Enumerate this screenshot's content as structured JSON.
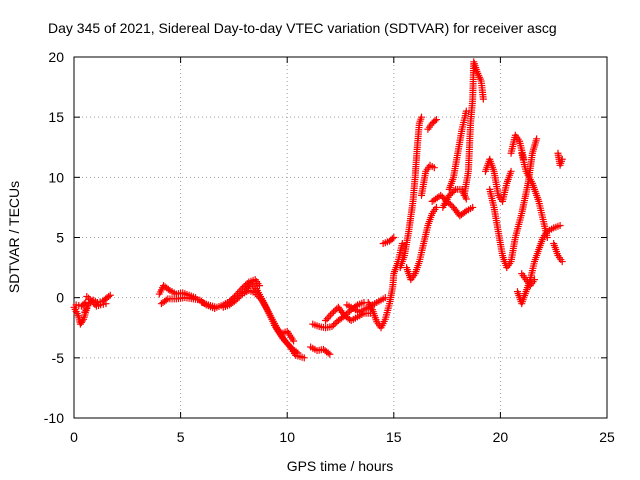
{
  "chart_data": {
    "type": "scatter",
    "title": "Day 345 of 2021, Sidereal Day-to-day VTEC variation (SDTVAR) for receiver ascg",
    "xlabel": "GPS time / hours",
    "ylabel": "SDTVAR / TECUs",
    "xlim": [
      0,
      25
    ],
    "ylim": [
      -10,
      20
    ],
    "xticks": [
      0,
      5,
      10,
      15,
      20,
      25
    ],
    "yticks": [
      -10,
      -5,
      0,
      5,
      10,
      15,
      20
    ],
    "grid": true,
    "marker": "+",
    "color": "#ff0000",
    "series": [
      {
        "name": "SDTVAR",
        "segments": [
          [
            [
              0.0,
              -0.8
            ],
            [
              0.2,
              -1.5
            ],
            [
              0.3,
              -2.2
            ],
            [
              0.45,
              -1.8
            ],
            [
              0.6,
              -0.9
            ]
          ],
          [
            [
              0.1,
              -0.6
            ],
            [
              0.35,
              -0.7
            ],
            [
              0.55,
              -0.4
            ]
          ],
          [
            [
              0.5,
              -1.2
            ],
            [
              0.7,
              -0.5
            ],
            [
              0.9,
              -0.2
            ],
            [
              1.1,
              -0.4
            ],
            [
              1.35,
              -0.3
            ],
            [
              1.55,
              0.0
            ],
            [
              1.7,
              0.2
            ]
          ],
          [
            [
              0.6,
              0.1
            ],
            [
              0.85,
              -0.3
            ],
            [
              1.05,
              -0.7
            ],
            [
              1.25,
              -0.6
            ],
            [
              1.5,
              -0.5
            ]
          ],
          [
            [
              4.0,
              0.3
            ],
            [
              4.2,
              1.0
            ],
            [
              4.5,
              0.6
            ],
            [
              4.8,
              0.3
            ],
            [
              5.1,
              0.4
            ],
            [
              5.4,
              0.2
            ],
            [
              5.7,
              0.0
            ]
          ],
          [
            [
              4.1,
              -0.5
            ],
            [
              4.4,
              -0.1
            ],
            [
              4.8,
              -0.1
            ],
            [
              5.2,
              0.0
            ],
            [
              5.6,
              -0.1
            ],
            [
              5.9,
              -0.2
            ],
            [
              6.2,
              -0.6
            ],
            [
              6.6,
              -0.9
            ]
          ],
          [
            [
              6.0,
              -0.4
            ],
            [
              6.3,
              -0.6
            ],
            [
              6.7,
              -0.8
            ],
            [
              7.0,
              -0.6
            ],
            [
              7.3,
              -0.3
            ],
            [
              7.6,
              0.2
            ],
            [
              7.9,
              0.8
            ],
            [
              8.2,
              1.3
            ],
            [
              8.5,
              1.5
            ],
            [
              8.7,
              1.0
            ]
          ],
          [
            [
              7.0,
              -0.8
            ],
            [
              7.3,
              -0.6
            ],
            [
              7.6,
              -0.2
            ],
            [
              7.9,
              0.3
            ],
            [
              8.2,
              0.6
            ],
            [
              8.5,
              0.4
            ],
            [
              8.8,
              -0.2
            ],
            [
              9.0,
              -0.8
            ],
            [
              9.3,
              -1.8
            ],
            [
              9.6,
              -2.8
            ],
            [
              9.9,
              -3.6
            ],
            [
              10.2,
              -4.2
            ],
            [
              10.5,
              -4.6
            ]
          ],
          [
            [
              8.0,
              0.5
            ],
            [
              8.3,
              1.2
            ],
            [
              8.6,
              0.6
            ],
            [
              8.9,
              -0.4
            ],
            [
              9.2,
              -1.5
            ],
            [
              9.5,
              -2.6
            ],
            [
              9.8,
              -3.4
            ],
            [
              10.1,
              -4.0
            ],
            [
              10.4,
              -4.8
            ],
            [
              10.8,
              -5.0
            ]
          ],
          [
            [
              9.4,
              -2.3
            ],
            [
              9.7,
              -3.0
            ],
            [
              10.0,
              -2.8
            ],
            [
              10.3,
              -3.6
            ]
          ],
          [
            [
              11.1,
              -4.1
            ],
            [
              11.4,
              -4.4
            ],
            [
              11.7,
              -4.3
            ],
            [
              12.0,
              -4.7
            ]
          ],
          [
            [
              11.2,
              -2.2
            ],
            [
              11.5,
              -2.4
            ],
            [
              11.8,
              -2.5
            ],
            [
              12.1,
              -2.4
            ],
            [
              12.4,
              -1.9
            ],
            [
              12.7,
              -1.5
            ],
            [
              13.0,
              -1.0
            ],
            [
              13.3,
              -0.6
            ],
            [
              13.6,
              -0.4
            ]
          ],
          [
            [
              11.8,
              -1.9
            ],
            [
              12.1,
              -1.3
            ],
            [
              12.4,
              -0.8
            ],
            [
              12.7,
              -1.5
            ],
            [
              13.0,
              -1.9
            ],
            [
              13.3,
              -1.6
            ],
            [
              13.6,
              -1.3
            ],
            [
              13.9,
              -1.3
            ]
          ],
          [
            [
              12.8,
              -0.6
            ],
            [
              13.1,
              -0.9
            ],
            [
              13.4,
              -1.2
            ],
            [
              13.7,
              -0.9
            ],
            [
              14.0,
              -0.6
            ],
            [
              14.3,
              -0.3
            ],
            [
              14.6,
              0.0
            ]
          ],
          [
            [
              13.8,
              -0.4
            ],
            [
              14.0,
              -1.0
            ],
            [
              14.2,
              -2.0
            ],
            [
              14.4,
              -2.5
            ],
            [
              14.6,
              -1.8
            ],
            [
              14.8,
              -0.5
            ],
            [
              14.95,
              0.9
            ],
            [
              15.0,
              2.0
            ],
            [
              15.2,
              3.0
            ],
            [
              15.4,
              4.5
            ]
          ],
          [
            [
              14.5,
              4.5
            ],
            [
              14.8,
              4.7
            ],
            [
              15.0,
              5.0
            ]
          ],
          [
            [
              15.3,
              2.5
            ],
            [
              15.5,
              3.5
            ],
            [
              15.7,
              5.5
            ],
            [
              15.9,
              8.0
            ],
            [
              16.0,
              10.0
            ],
            [
              16.1,
              12.5
            ],
            [
              16.2,
              14.5
            ],
            [
              16.3,
              15.0
            ]
          ],
          [
            [
              15.6,
              2.5
            ],
            [
              15.8,
              1.5
            ],
            [
              16.0,
              2.0
            ],
            [
              16.2,
              3.0
            ],
            [
              16.4,
              4.5
            ],
            [
              16.6,
              6.0
            ],
            [
              16.8,
              7.0
            ],
            [
              17.0,
              7.5
            ]
          ],
          [
            [
              16.3,
              8.5
            ],
            [
              16.5,
              10.5
            ],
            [
              16.7,
              11.0
            ],
            [
              16.9,
              10.8
            ]
          ],
          [
            [
              16.6,
              14.0
            ],
            [
              16.8,
              14.5
            ],
            [
              17.0,
              14.8
            ]
          ],
          [
            [
              16.8,
              8.0
            ],
            [
              17.2,
              8.5
            ],
            [
              17.5,
              8.0
            ],
            [
              17.8,
              7.5
            ],
            [
              18.1,
              6.8
            ],
            [
              18.4,
              7.2
            ],
            [
              18.7,
              7.5
            ]
          ],
          [
            [
              17.3,
              7.5
            ],
            [
              17.6,
              8.5
            ],
            [
              17.9,
              9.0
            ],
            [
              18.2,
              9.0
            ],
            [
              18.4,
              8.2
            ]
          ],
          [
            [
              17.6,
              9.0
            ],
            [
              17.8,
              10.0
            ],
            [
              18.0,
              12.0
            ],
            [
              18.2,
              14.0
            ],
            [
              18.4,
              15.5
            ]
          ],
          [
            [
              18.3,
              8.5
            ],
            [
              18.5,
              10.5
            ],
            [
              18.6,
              14.5
            ],
            [
              18.7,
              16.5
            ],
            [
              18.75,
              19.6
            ],
            [
              18.9,
              18.8
            ],
            [
              19.1,
              18.0
            ],
            [
              19.2,
              16.5
            ]
          ],
          [
            [
              19.3,
              10.5
            ],
            [
              19.5,
              11.5
            ],
            [
              19.7,
              10.5
            ],
            [
              19.9,
              8.5
            ],
            [
              20.1,
              8.0
            ],
            [
              20.3,
              9.5
            ],
            [
              20.5,
              10.5
            ]
          ],
          [
            [
              19.5,
              9.0
            ],
            [
              19.7,
              7.5
            ],
            [
              19.9,
              5.5
            ],
            [
              20.1,
              3.5
            ],
            [
              20.3,
              2.5
            ],
            [
              20.5,
              3.0
            ],
            [
              20.7,
              5.0
            ],
            [
              21.0,
              7.0
            ],
            [
              21.3,
              9.5
            ],
            [
              21.5,
              12.0
            ],
            [
              21.7,
              13.2
            ]
          ],
          [
            [
              20.5,
              12.0
            ],
            [
              20.7,
              13.5
            ],
            [
              20.9,
              13.0
            ],
            [
              21.1,
              11.5
            ]
          ],
          [
            [
              21.0,
              12.0
            ],
            [
              21.2,
              10.5
            ],
            [
              21.5,
              9.5
            ],
            [
              21.8,
              8.0
            ],
            [
              22.0,
              6.5
            ],
            [
              22.2,
              5.0
            ]
          ],
          [
            [
              20.8,
              0.5
            ],
            [
              21.0,
              -0.5
            ],
            [
              21.2,
              0.5
            ],
            [
              21.4,
              1.5
            ],
            [
              21.6,
              3.0
            ],
            [
              21.8,
              4.0
            ],
            [
              22.0,
              5.0
            ],
            [
              22.2,
              5.5
            ],
            [
              22.5,
              5.8
            ],
            [
              22.8,
              6.0
            ]
          ],
          [
            [
              21.0,
              2.0
            ],
            [
              21.2,
              1.5
            ],
            [
              21.4,
              1.0
            ],
            [
              21.6,
              1.5
            ]
          ],
          [
            [
              22.5,
              4.5
            ],
            [
              22.7,
              3.5
            ],
            [
              22.9,
              3.0
            ]
          ],
          [
            [
              22.7,
              12.0
            ],
            [
              22.8,
              11.0
            ],
            [
              22.9,
              11.5
            ]
          ]
        ]
      }
    ]
  }
}
